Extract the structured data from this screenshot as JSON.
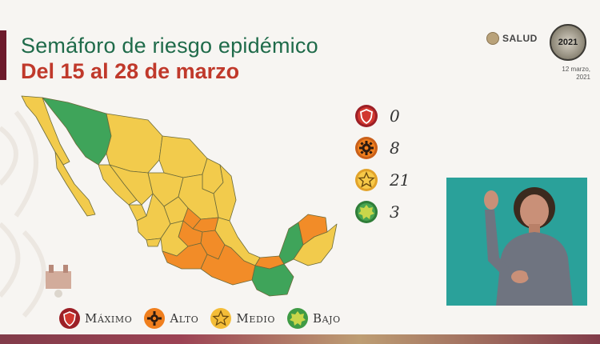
{
  "header": {
    "title": "Semáforo de riesgo epidémico",
    "subtitle": "Del 15 al 28 de marzo"
  },
  "logos": {
    "salud": "SALUD",
    "year": "2021",
    "date_line1": "12 marzo,",
    "date_line2": "2021"
  },
  "counts": [
    {
      "level": "maximo",
      "value": "0",
      "color": "#c0392b"
    },
    {
      "level": "alto",
      "value": "8",
      "color": "#f07f1e"
    },
    {
      "level": "medio",
      "value": "21",
      "color": "#f4bd38"
    },
    {
      "level": "bajo",
      "value": "3",
      "color": "#3f9b45"
    }
  ],
  "legend": [
    {
      "label": "Máximo",
      "color": "#c0392b",
      "icon": "shield-icon"
    },
    {
      "label": "Alto",
      "color": "#f07f1e",
      "icon": "gear-icon"
    },
    {
      "label": "Medio",
      "color": "#f4bd38",
      "icon": "star-icon"
    },
    {
      "label": "Bajo",
      "color": "#3f9b45",
      "icon": "badge-icon"
    }
  ],
  "colors": {
    "yellow": "#f2cb4c",
    "orange": "#f28c28",
    "green": "#3fa45a",
    "title_green": "#1f6b4a",
    "subtitle_red": "#c0392b"
  }
}
